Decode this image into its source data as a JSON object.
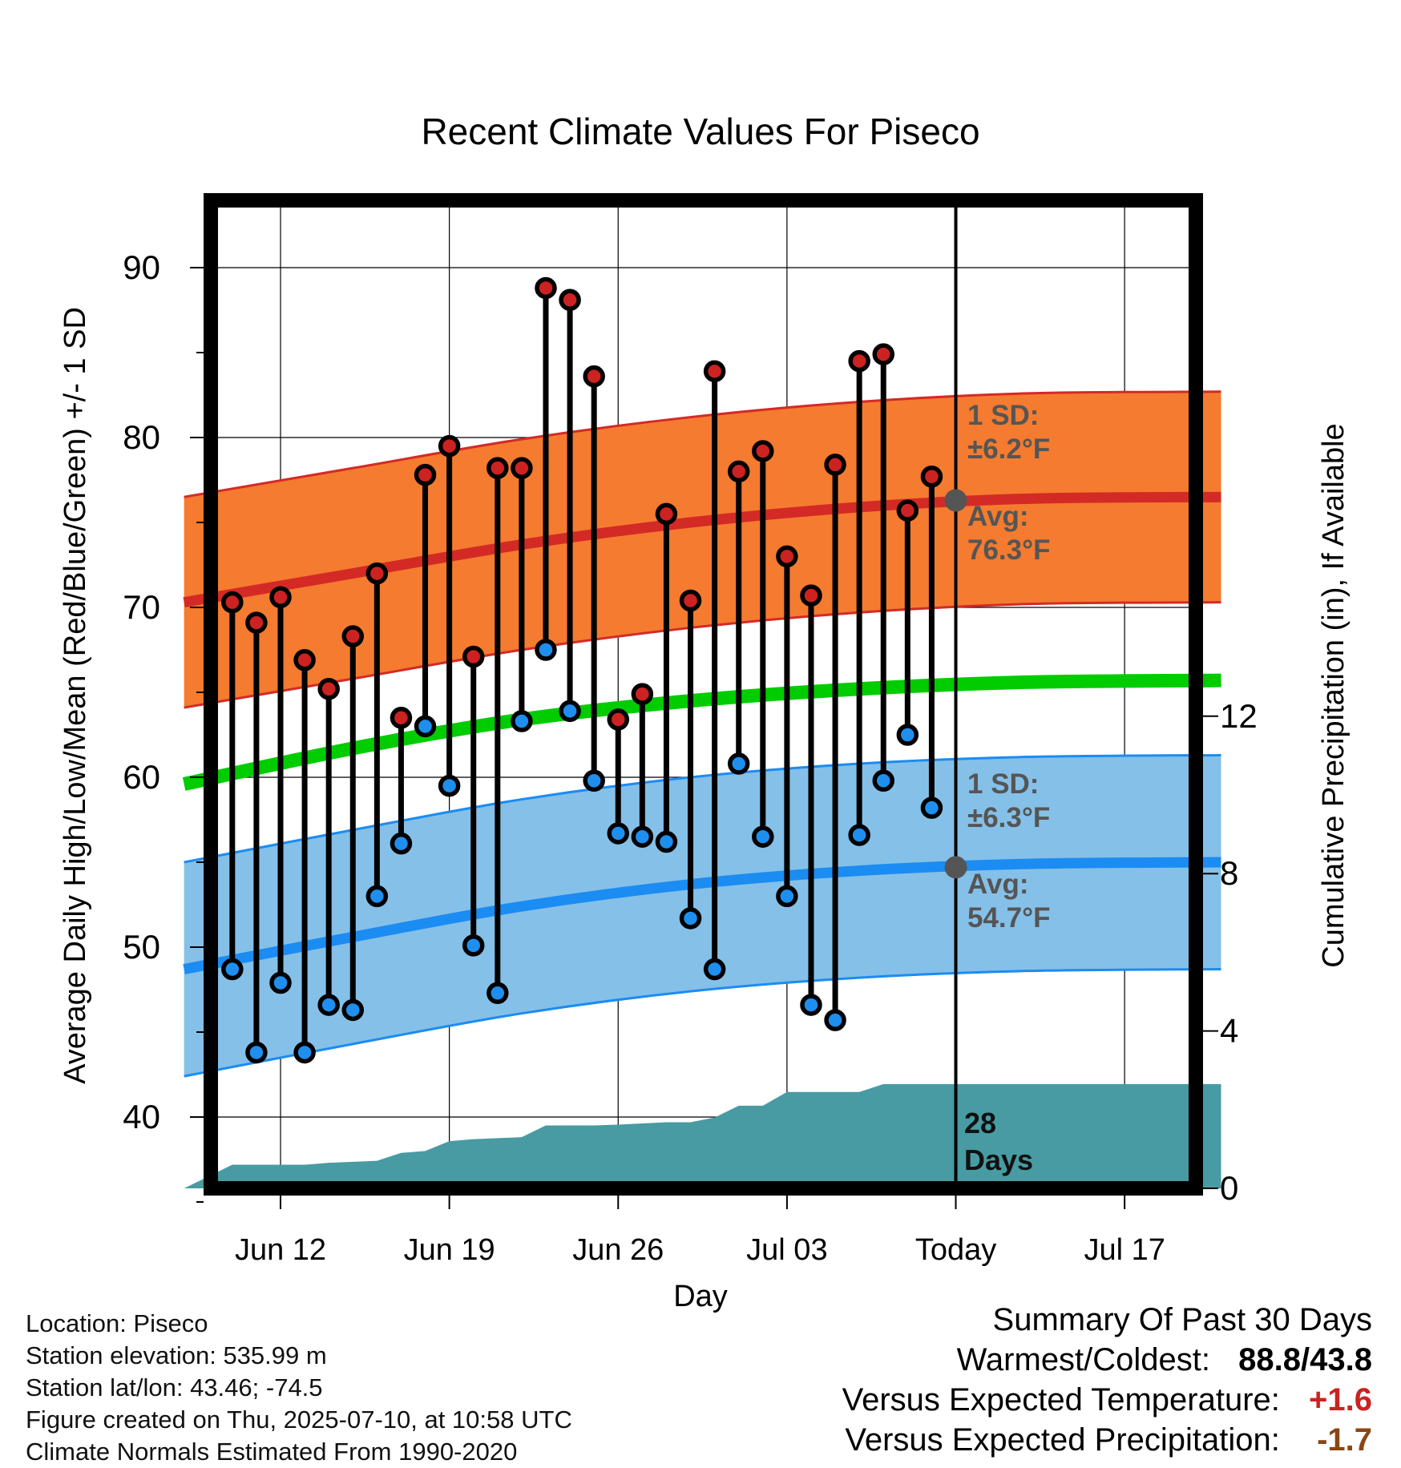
{
  "chart_data": {
    "type": "line",
    "title": "Recent Climate Values For Piseco",
    "xlabel": "Day",
    "ylabel": "Average Daily High/Low/Mean (Red/Blue/Green) +/- 1 SD",
    "y2label": "Cumulative Precipitation (in), If Available",
    "ylim": [
      35,
      94
    ],
    "y2lim": [
      0,
      22.5
    ],
    "yticks": [
      40,
      50,
      60,
      70,
      80,
      90
    ],
    "y2ticks": [
      0,
      4,
      8,
      12
    ],
    "xrange": [
      "2025-06-08",
      "2025-07-21"
    ],
    "xticks": [
      {
        "date": "2025-06-12",
        "label": "Jun 12"
      },
      {
        "date": "2025-06-19",
        "label": "Jun 19"
      },
      {
        "date": "2025-06-26",
        "label": "Jun 26"
      },
      {
        "date": "2025-07-03",
        "label": "Jul 03"
      },
      {
        "date": "2025-07-10",
        "label": "Today"
      },
      {
        "date": "2025-07-17",
        "label": "Jul 17"
      }
    ],
    "grid": true,
    "today": "2025-07-10",
    "observations": {
      "dates": [
        "2025-06-10",
        "2025-06-11",
        "2025-06-12",
        "2025-06-13",
        "2025-06-14",
        "2025-06-15",
        "2025-06-16",
        "2025-06-17",
        "2025-06-18",
        "2025-06-19",
        "2025-06-20",
        "2025-06-21",
        "2025-06-22",
        "2025-06-23",
        "2025-06-24",
        "2025-06-25",
        "2025-06-26",
        "2025-06-27",
        "2025-06-28",
        "2025-06-29",
        "2025-06-30",
        "2025-07-01",
        "2025-07-02",
        "2025-07-03",
        "2025-07-04",
        "2025-07-05",
        "2025-07-06",
        "2025-07-07",
        "2025-07-08",
        "2025-07-09"
      ],
      "highs": [
        70.3,
        69.1,
        70.6,
        66.9,
        65.2,
        68.3,
        72.0,
        63.5,
        77.8,
        79.5,
        67.1,
        78.2,
        78.2,
        88.8,
        88.1,
        83.6,
        63.4,
        64.9,
        75.5,
        70.4,
        83.9,
        78.0,
        79.2,
        73.0,
        70.7,
        78.4,
        84.5,
        84.9,
        75.7,
        77.7
      ],
      "lows": [
        48.7,
        43.8,
        47.9,
        43.8,
        46.6,
        46.3,
        53.0,
        56.1,
        63.0,
        59.5,
        50.1,
        47.3,
        63.3,
        67.5,
        63.9,
        59.8,
        56.7,
        56.5,
        56.2,
        51.7,
        48.7,
        60.8,
        56.5,
        53.0,
        46.6,
        45.7,
        56.6,
        59.8,
        62.5,
        58.2
      ]
    },
    "normals": {
      "dates": [
        "2025-06-08",
        "2025-06-15",
        "2025-06-22",
        "2025-06-29",
        "2025-07-06",
        "2025-07-13",
        "2025-07-21"
      ],
      "high_avg": [
        70.3,
        72.0,
        73.7,
        75.0,
        75.9,
        76.4,
        76.5
      ],
      "high_sd": 6.2,
      "low_avg": [
        48.7,
        50.6,
        52.4,
        53.7,
        54.5,
        54.9,
        55.0
      ],
      "low_sd": 6.3,
      "mean_avg": [
        59.6,
        61.7,
        63.4,
        64.5,
        65.2,
        65.6,
        65.7
      ]
    },
    "precipitation": {
      "dates": [
        "2025-06-08",
        "2025-06-09",
        "2025-06-10",
        "2025-06-13",
        "2025-06-14",
        "2025-06-16",
        "2025-06-17",
        "2025-06-18",
        "2025-06-19",
        "2025-06-20",
        "2025-06-22",
        "2025-06-23",
        "2025-06-24",
        "2025-06-25",
        "2025-06-26",
        "2025-06-27",
        "2025-06-28",
        "2025-06-29",
        "2025-06-30",
        "2025-07-01",
        "2025-07-02",
        "2025-07-03",
        "2025-07-04",
        "2025-07-05",
        "2025-07-06",
        "2025-07-07",
        "2025-07-08",
        "2025-07-21"
      ],
      "values": [
        0.0,
        0.3,
        0.6,
        0.6,
        0.65,
        0.7,
        0.9,
        0.95,
        1.2,
        1.25,
        1.3,
        1.6,
        1.6,
        1.6,
        1.62,
        1.65,
        1.68,
        1.68,
        1.8,
        2.1,
        2.1,
        2.45,
        2.45,
        2.45,
        2.45,
        2.65,
        2.65,
        2.65
      ]
    },
    "annotations": {
      "high_sd_label": "1 SD:",
      "high_sd_value": "±6.2°F",
      "high_avg_label": "Avg:",
      "high_avg_value": "76.3°F",
      "low_sd_label": "1 SD:",
      "low_sd_value": "±6.3°F",
      "low_avg_label": "Avg:",
      "low_avg_value": "54.7°F",
      "days_value": "28",
      "days_label": "Days"
    },
    "colors": {
      "high_band": "#f47b2f",
      "high_line": "#d42a26",
      "low_band": "#85c0e8",
      "low_line": "#1b8cf2",
      "mean_line": "#00cc00",
      "precip": "#489ba3",
      "high_dot": "#cc2222",
      "low_dot": "#1e8fee",
      "annotation_text": "#555555"
    }
  },
  "info": {
    "location": "Location: Piseco",
    "elevation": "Station elevation: 535.99 m",
    "latlon": "Station lat/lon: 43.46; -74.5",
    "created": "Figure created on Thu, 2025-07-10, at 10:58 UTC",
    "normals": "Climate Normals Estimated From 1990-2020"
  },
  "summary": {
    "title": "Summary Of Past 30 Days",
    "warm_cold_label": "Warmest/Coldest:",
    "warm_value": "88.8",
    "cold_value": "43.8",
    "temp_label": "Versus Expected Temperature:",
    "temp_value": "+1.6",
    "temp_color": "#cc2222",
    "precip_label": "Versus Expected Precipitation:",
    "precip_value": "-1.7",
    "precip_color": "#8b4513"
  }
}
